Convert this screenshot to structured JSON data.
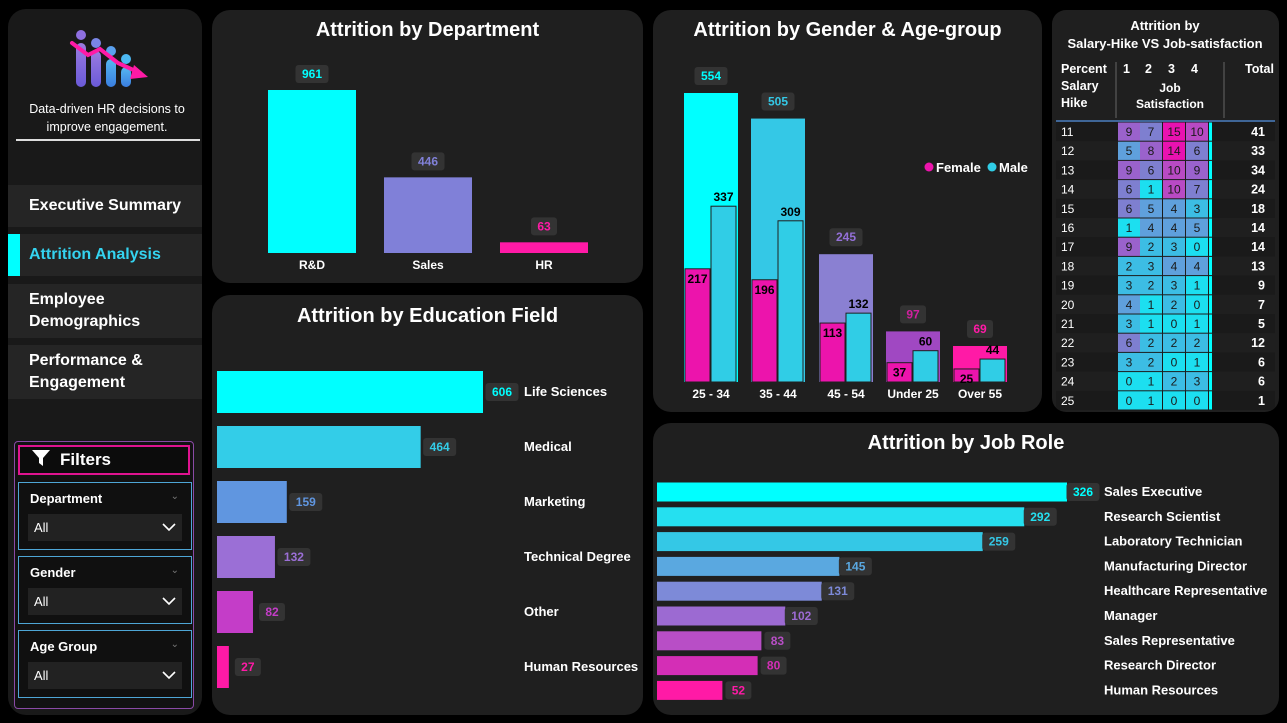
{
  "sidebar": {
    "tagline_line1": "Data-driven HR decisions to",
    "tagline_line2": "improve engagement.",
    "nav": [
      {
        "label": "Executive Summary",
        "active": false
      },
      {
        "label": "Attrition Analysis",
        "active": true
      },
      {
        "label": "Employee Demographics",
        "active": false
      },
      {
        "label": "Performance & Engagement",
        "active": false
      }
    ],
    "filters_title": "Filters",
    "slicers": [
      {
        "label": "Department",
        "value": "All"
      },
      {
        "label": "Gender",
        "value": "All"
      },
      {
        "label": "Age Group",
        "value": "All"
      }
    ]
  },
  "colors": {
    "cyan": "#00ffff",
    "sky": "#34c8e6",
    "blue": "#5f9ee0",
    "lavender": "#7e7fd0",
    "purple": "#a45ccf",
    "magenta": "#e919b4",
    "pink": "#ff1aa6"
  },
  "chart_data": [
    {
      "type": "bar",
      "title": "Attrition by Department",
      "categories": [
        "R&D",
        "Sales",
        "HR"
      ],
      "values": [
        961,
        446,
        63
      ],
      "colors": [
        "#00ffff",
        "#8080d8",
        "#ff1aa6"
      ],
      "label_colors": [
        "#00ffff",
        "#8080d8",
        "#ff1aa6"
      ]
    },
    {
      "type": "bar",
      "title": "Attrition by Education Field",
      "orientation": "horizontal",
      "categories": [
        "Life Sciences",
        "Medical",
        "Marketing",
        "Technical Degree",
        "Other",
        "Human Resources"
      ],
      "values": [
        606,
        464,
        159,
        132,
        82,
        27
      ],
      "colors": [
        "#00ffff",
        "#33cde8",
        "#6096e0",
        "#9b6fd6",
        "#c43dc8",
        "#ff1aa6"
      ]
    },
    {
      "type": "bar",
      "title": "Attrition by Gender & Age-group",
      "categories": [
        "25 - 34",
        "35 - 44",
        "45 - 54",
        "Under 25",
        "Over 55"
      ],
      "totals": [
        554,
        505,
        245,
        97,
        69
      ],
      "total_colors": [
        "#00ffff",
        "#34c8e6",
        "#9470d8",
        "#d0209e",
        "#ff1aa6"
      ],
      "series": [
        {
          "name": "Female",
          "values": [
            217,
            196,
            113,
            37,
            25
          ],
          "color": "#ec14ac"
        },
        {
          "name": "Male",
          "values": [
            337,
            309,
            132,
            60,
            44
          ],
          "color": "#30cde6"
        }
      ],
      "back_colors": [
        "#00ffff",
        "#34c8e6",
        "#8a80d2",
        "#a048c2",
        "#ff1aa6"
      ],
      "legend": "right"
    },
    {
      "type": "bar",
      "title": "Attrition by Job Role",
      "orientation": "horizontal",
      "categories": [
        "Sales Executive",
        "Research Scientist",
        "Laboratory Technician",
        "Manufacturing Director",
        "Healthcare Representative",
        "Manager",
        "Sales Representative",
        "Research Director",
        "Human Resources"
      ],
      "values": [
        326,
        292,
        259,
        145,
        131,
        102,
        83,
        80,
        52
      ],
      "colors": [
        "#00ffff",
        "#25e0f0",
        "#34c8e6",
        "#5aa8e0",
        "#7d8ad8",
        "#9c6ad2",
        "#b84ec6",
        "#d42eb6",
        "#ff1aa6"
      ]
    },
    {
      "type": "table",
      "title": "Attrition by Salary-Hike VS Job-satisfaction",
      "title_line1": "Attrition by",
      "title_line2": "Salary-Hike VS Job-satisfaction",
      "row_header": [
        "Percent",
        "Salary",
        "Hike"
      ],
      "col_group": [
        "Job",
        "Satisfaction"
      ],
      "columns": [
        "1",
        "2",
        "3",
        "4"
      ],
      "total_label": "Total",
      "rows": [
        {
          "hike": "11",
          "values": [
            9,
            7,
            15,
            10
          ],
          "total": 41
        },
        {
          "hike": "12",
          "values": [
            5,
            8,
            14,
            6
          ],
          "total": 33
        },
        {
          "hike": "13",
          "values": [
            9,
            6,
            10,
            9
          ],
          "total": 34
        },
        {
          "hike": "14",
          "values": [
            6,
            1,
            10,
            7
          ],
          "total": 24
        },
        {
          "hike": "15",
          "values": [
            6,
            5,
            4,
            3
          ],
          "total": 18
        },
        {
          "hike": "16",
          "values": [
            1,
            4,
            4,
            5
          ],
          "total": 14
        },
        {
          "hike": "17",
          "values": [
            9,
            2,
            3,
            0
          ],
          "total": 14
        },
        {
          "hike": "18",
          "values": [
            2,
            3,
            4,
            4
          ],
          "total": 13
        },
        {
          "hike": "19",
          "values": [
            3,
            2,
            3,
            1
          ],
          "total": 9
        },
        {
          "hike": "20",
          "values": [
            4,
            1,
            2,
            0
          ],
          "total": 7
        },
        {
          "hike": "21",
          "values": [
            3,
            1,
            0,
            1
          ],
          "total": 5
        },
        {
          "hike": "22",
          "values": [
            6,
            2,
            2,
            2
          ],
          "total": 12
        },
        {
          "hike": "23",
          "values": [
            3,
            2,
            0,
            1
          ],
          "total": 6
        },
        {
          "hike": "24",
          "values": [
            0,
            1,
            2,
            3
          ],
          "total": 6
        },
        {
          "hike": "25",
          "values": [
            0,
            1,
            0,
            0
          ],
          "total": 1
        }
      ]
    }
  ]
}
